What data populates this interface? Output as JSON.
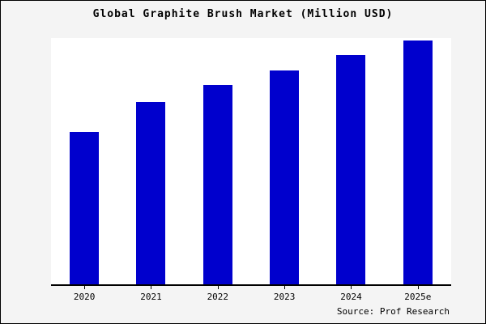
{
  "title": "Global Graphite Brush Market (Million USD)",
  "source_label": "Source: Prof Research",
  "colors": {
    "bar": "#0000cd",
    "background": "#f4f4f4",
    "plot_background": "#ffffff",
    "axis": "#000000",
    "border": "#000000"
  },
  "chart_data": {
    "type": "bar",
    "title": "Global Graphite Brush Market (Million USD)",
    "categories": [
      "2020",
      "2021",
      "2022",
      "2023",
      "2024",
      "2025e"
    ],
    "values": [
      62,
      74,
      81,
      87,
      93,
      99
    ],
    "xlabel": "",
    "ylabel": "",
    "ylim": [
      0,
      100
    ],
    "grid": false,
    "legend": false,
    "annotation": "Source: Prof Research"
  }
}
